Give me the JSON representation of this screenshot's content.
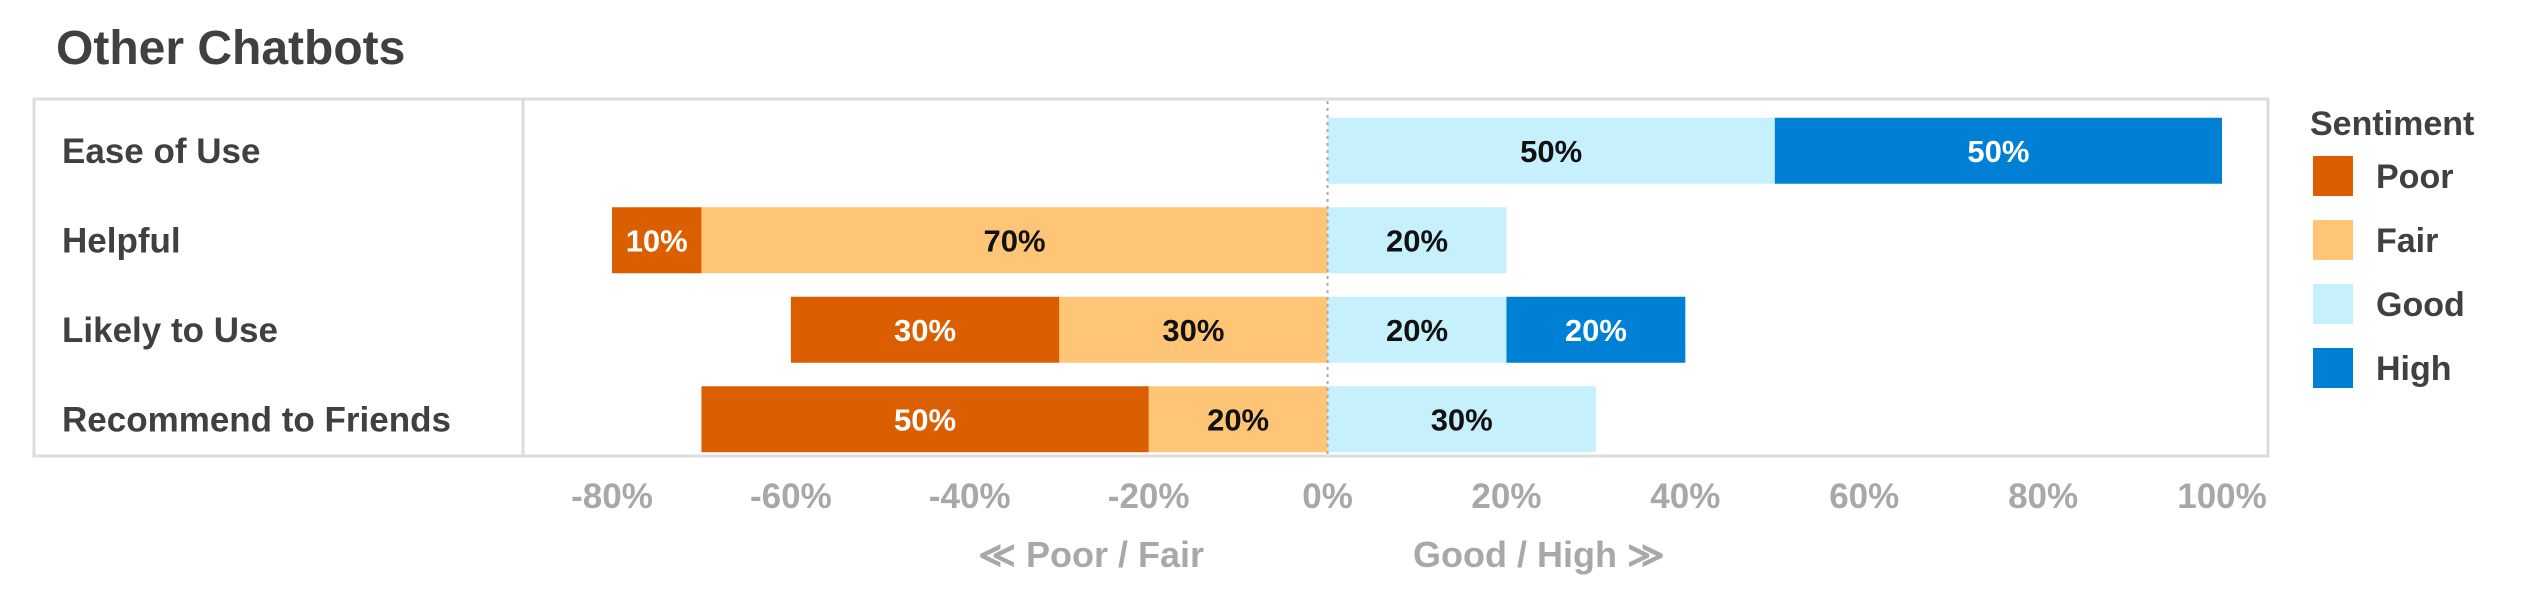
{
  "chart_data": {
    "type": "bar",
    "orientation": "horizontal",
    "stacking": "diverging",
    "title": "Other Chatbots",
    "categories": [
      "Ease of Use",
      "Helpful",
      "Likely to Use",
      "Recommend to Friends"
    ],
    "series": [
      {
        "name": "Poor",
        "color": "#db5f00",
        "label_color": "#ffffff",
        "side": "negative",
        "values": [
          0,
          10,
          30,
          50
        ]
      },
      {
        "name": "Fair",
        "color": "#fec577",
        "label_color": "#111111",
        "side": "negative",
        "values": [
          0,
          70,
          30,
          20
        ]
      },
      {
        "name": "Good",
        "color": "#c7f0fd",
        "label_color": "#111111",
        "side": "positive",
        "values": [
          50,
          20,
          20,
          30
        ]
      },
      {
        "name": "High",
        "color": "#0080d5",
        "label_color": "#ffffff",
        "side": "positive",
        "values": [
          50,
          0,
          20,
          0
        ]
      }
    ],
    "xlim": [
      -80,
      100
    ],
    "xticks": [
      -80,
      -60,
      -40,
      -20,
      0,
      20,
      40,
      60,
      80,
      100
    ],
    "xtick_labels": [
      "-80%",
      "-60%",
      "-40%",
      "-20%",
      "0%",
      "20%",
      "40%",
      "60%",
      "80%",
      "100%"
    ],
    "x_direction_labels": {
      "negative": "≪ Poor / Fair",
      "positive": "Good / High ≫"
    },
    "legend": {
      "title": "Sentiment",
      "placement": "right"
    },
    "grid": false,
    "zero_line": "dotted"
  }
}
